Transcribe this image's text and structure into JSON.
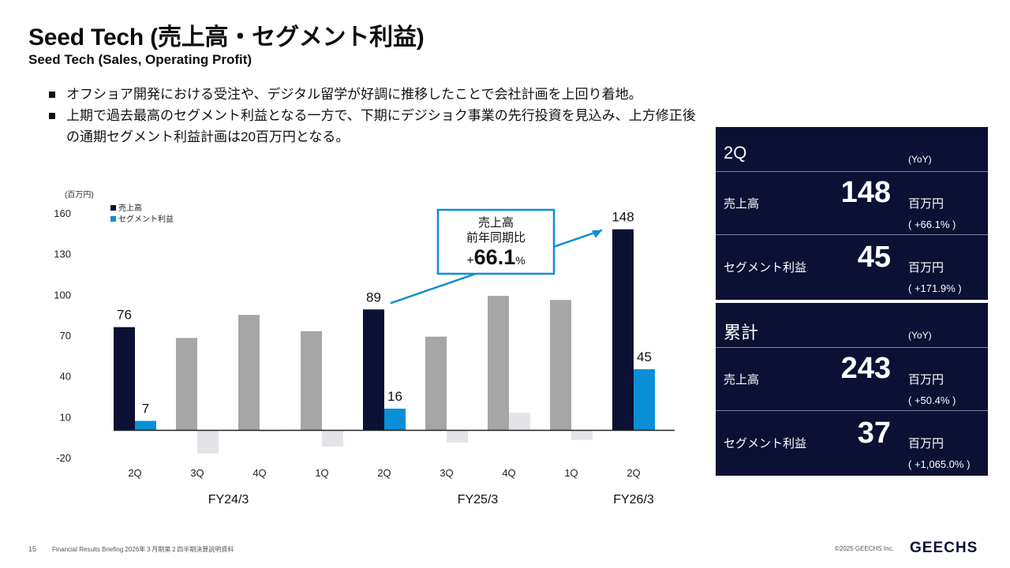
{
  "header": {
    "title": "Seed Tech (売上高・セグメント利益)",
    "subtitle": "Seed Tech (Sales, Operating Profit)"
  },
  "bullets": [
    "オフショア開発における受注や、デジタル留学が好調に推移したことで会社計画を上回り着地。",
    "上期で過去最高のセグメント利益となる一方で、下期にデジショク事業の先行投資を見込み、上方修正後の通期セグメント利益計画は20百万円となる。"
  ],
  "chart_data": {
    "type": "bar",
    "unit_label": "(百万円)",
    "categories": [
      "2Q",
      "3Q",
      "4Q",
      "1Q",
      "2Q",
      "3Q",
      "4Q",
      "1Q",
      "2Q"
    ],
    "groups": [
      {
        "label": "FY24/3",
        "span": [
          0,
          3
        ]
      },
      {
        "label": "FY25/3",
        "span": [
          4,
          7
        ]
      },
      {
        "label": "FY26/3",
        "span": [
          8,
          8
        ]
      }
    ],
    "series": [
      {
        "name": "売上高",
        "color": "#0b1034",
        "muted_color": "#a6a6a6",
        "values": [
          76,
          68,
          85,
          73,
          89,
          69,
          99,
          96,
          148
        ],
        "highlight": [
          true,
          false,
          false,
          false,
          true,
          false,
          false,
          false,
          true
        ],
        "labels": [
          "76",
          "",
          "",
          "",
          "89",
          "",
          "",
          "",
          "148"
        ]
      },
      {
        "name": "セグメント利益",
        "color": "#0a8fd6",
        "muted_color": "#e3e4e8",
        "values": [
          7,
          -17,
          -1,
          -12,
          16,
          -9,
          13,
          -7,
          45
        ],
        "highlight": [
          true,
          false,
          false,
          false,
          true,
          false,
          false,
          false,
          true
        ],
        "labels": [
          "7",
          "",
          "",
          "",
          "16",
          "",
          "",
          "",
          "45"
        ]
      }
    ],
    "yticks": [
      160,
      130,
      100,
      70,
      40,
      10,
      -20
    ],
    "ylim": [
      -20,
      160
    ],
    "legend": "top-left",
    "callout": {
      "line1": "売上高",
      "line2": "前年同期比",
      "value": "66.1",
      "sign": "+",
      "unit": "%",
      "color": "#0a8fd6"
    }
  },
  "panels": [
    {
      "heading": "2Q",
      "yoy_label": "(YoY)",
      "rows": [
        {
          "label": "売上高",
          "value": "148",
          "unit": "百万円",
          "yoy": "( +66.1% )"
        },
        {
          "label": "セグメント利益",
          "value": "45",
          "unit": "百万円",
          "yoy": "( +171.9% )"
        }
      ]
    },
    {
      "heading": "累計",
      "yoy_label": "(YoY)",
      "rows": [
        {
          "label": "売上高",
          "value": "243",
          "unit": "百万円",
          "yoy": "( +50.4% )"
        },
        {
          "label": "セグメント利益",
          "value": "37",
          "unit": "百万円",
          "yoy": "( +1,065.0% )"
        }
      ]
    }
  ],
  "footer": {
    "page_number": "15",
    "doc_title": "Financial Results Briefing 2026年３月期第２四半期決算説明資料",
    "copyright": "©2025 GEECHS Inc.",
    "logo": "GEECHS"
  }
}
